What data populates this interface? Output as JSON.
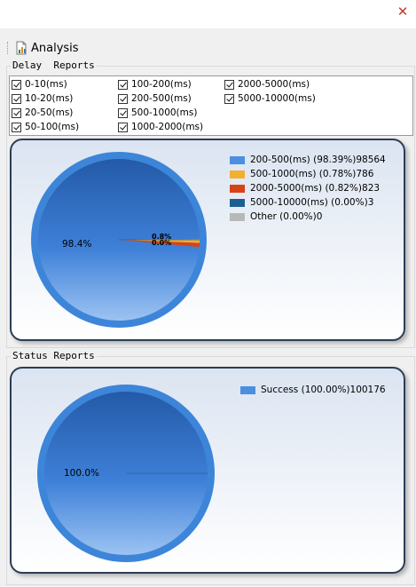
{
  "window": {
    "close_glyph": "✕"
  },
  "toolbar": {
    "analysis_label": "Analysis",
    "icon": "chart-document-icon"
  },
  "delay_reports": {
    "title": "Delay  Reports",
    "checkboxes": [
      {
        "label": "0-10(ms)",
        "checked": true
      },
      {
        "label": "100-200(ms)",
        "checked": true
      },
      {
        "label": "2000-5000(ms)",
        "checked": true
      },
      {
        "label": "10-20(ms)",
        "checked": true
      },
      {
        "label": "200-500(ms)",
        "checked": true
      },
      {
        "label": "5000-10000(ms)",
        "checked": true
      },
      {
        "label": "20-50(ms)",
        "checked": true
      },
      {
        "label": "500-1000(ms)",
        "checked": true
      },
      {
        "label": "50-100(ms)",
        "checked": true
      },
      {
        "label": "1000-2000(ms)",
        "checked": true
      }
    ],
    "pie_label_main": "98.4%",
    "pie_label_small": "0.8%",
    "pie_label_small2": "0.0%",
    "legend": [
      {
        "label": "200-500(ms) (98.39%)98564",
        "color": "#4a8fe0"
      },
      {
        "label": "500-1000(ms) (0.78%)786",
        "color": "#f0b030"
      },
      {
        "label": "2000-5000(ms) (0.82%)823",
        "color": "#d84315"
      },
      {
        "label": "5000-10000(ms) (0.00%)3",
        "color": "#1f5f8f"
      },
      {
        "label": "Other (0.00%)0",
        "color": "#b8b8b8"
      }
    ]
  },
  "status_reports": {
    "title": "Status Reports",
    "pie_label_main": "100.0%",
    "legend": [
      {
        "label": "Success (100.00%)100176",
        "color": "#4a8fe0"
      }
    ]
  },
  "chart_data": [
    {
      "type": "pie",
      "title": "",
      "categories": [
        "200-500(ms)",
        "500-1000(ms)",
        "2000-5000(ms)",
        "5000-10000(ms)",
        "Other"
      ],
      "values": [
        98564,
        786,
        823,
        3,
        0
      ],
      "percentages": [
        98.39,
        0.78,
        0.82,
        0.0,
        0.0
      ],
      "colors": [
        "#4a8fe0",
        "#f0b030",
        "#d84315",
        "#1f5f8f",
        "#b8b8b8"
      ],
      "legend": "top-right"
    },
    {
      "type": "pie",
      "title": "",
      "categories": [
        "Success"
      ],
      "values": [
        100176
      ],
      "percentages": [
        100.0
      ],
      "colors": [
        "#4a8fe0"
      ],
      "legend": "top-right"
    }
  ]
}
